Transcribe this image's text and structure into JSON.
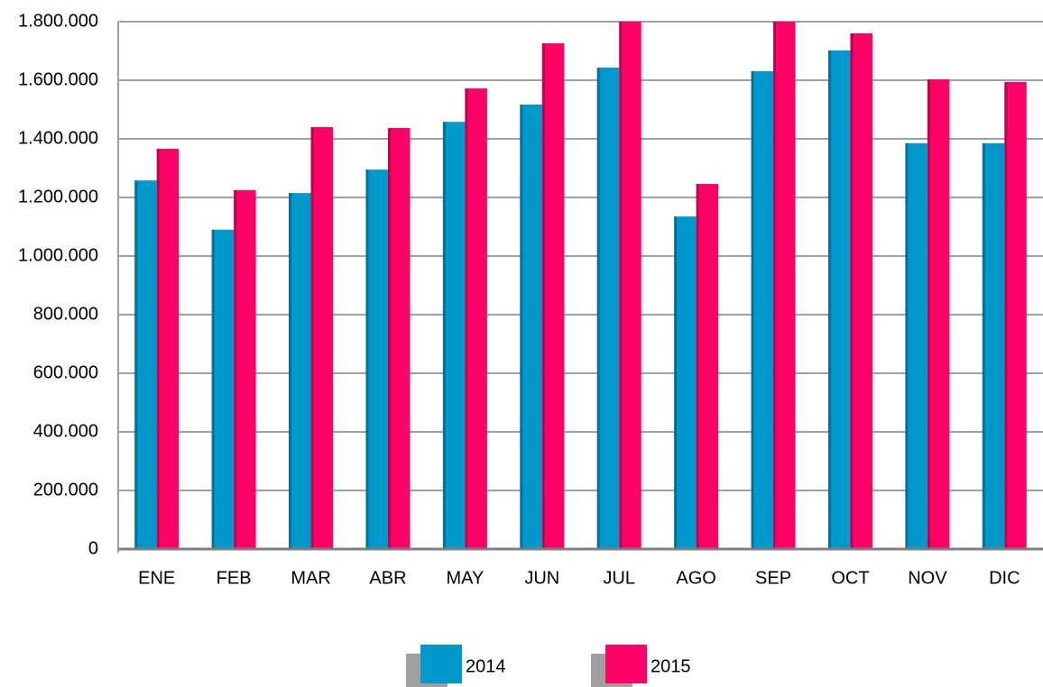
{
  "chart_data": {
    "type": "bar",
    "categories": [
      "ENE",
      "FEB",
      "MAR",
      "ABR",
      "MAY",
      "JUN",
      "JUL",
      "AGO",
      "SEP",
      "OCT",
      "NOV",
      "DIC"
    ],
    "series": [
      {
        "name": "2014",
        "color": "#0099cc",
        "values": [
          1258000,
          1090000,
          1215000,
          1295000,
          1458000,
          1517000,
          1643000,
          1135000,
          1631000,
          1702000,
          1385000,
          1385000
        ]
      },
      {
        "name": "2015",
        "color": "#ff0066",
        "values": [
          1366000,
          1225000,
          1440000,
          1437000,
          1572000,
          1726000,
          1800000,
          1246000,
          1800000,
          1760000,
          1603000,
          1594000
        ]
      }
    ],
    "ylim": [
      0,
      1800000
    ],
    "yticks": [
      0,
      {
        "value": 200000,
        "label": "200.000"
      },
      {
        "value": 400000,
        "label": "400.000"
      },
      {
        "value": 600000,
        "label": "600.000"
      },
      {
        "value": 800000,
        "label": "800.000"
      },
      {
        "value": 1000000,
        "label": "1.000.000"
      },
      {
        "value": 1200000,
        "label": "1.200.000"
      },
      {
        "value": 1400000,
        "label": "1.400.000"
      },
      {
        "value": 1600000,
        "label": "1.600.000"
      },
      {
        "value": 1800000,
        "label": "1.800.000"
      }
    ],
    "grid": true,
    "legend": "bottom"
  }
}
